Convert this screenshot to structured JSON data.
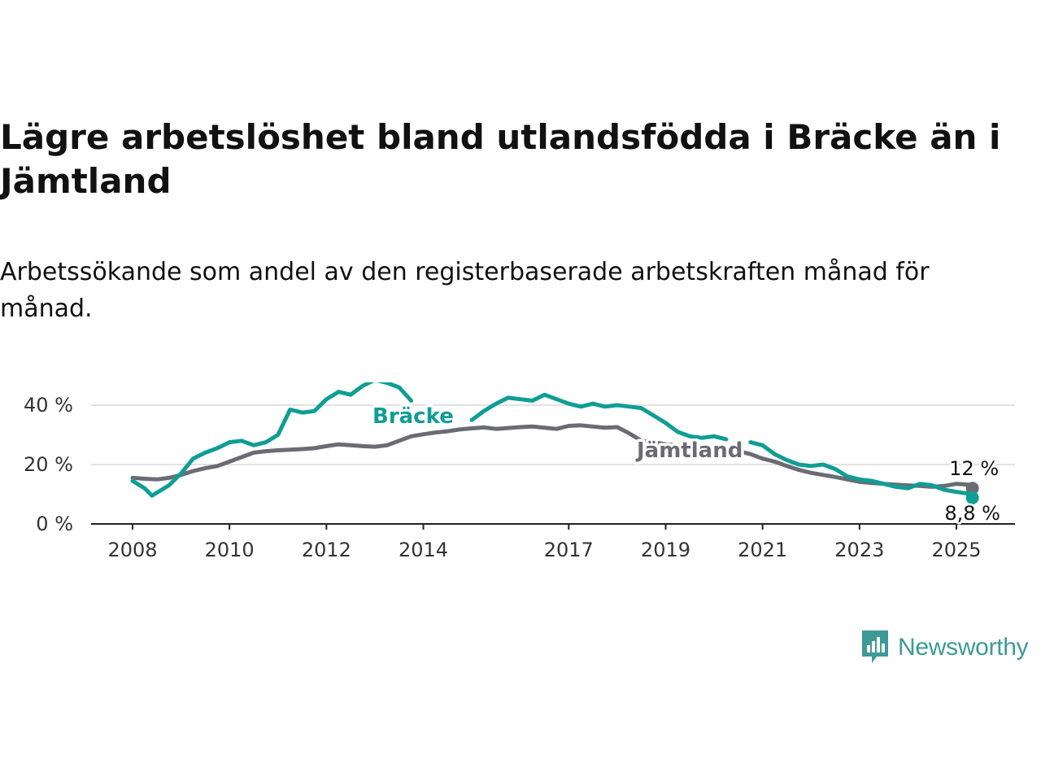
{
  "title": "Lägre arbetslöshet bland utlandsfödda i Bräcke än i Jämtland",
  "subtitle": "Arbetssökande som andel av den registerbaserade arbetskraften månad för månad.",
  "branding": {
    "name": "Newsworthy",
    "icon": "newsworthy-logo-icon",
    "color": "#3d9a95"
  },
  "chart_data": {
    "type": "line",
    "title": "Lägre arbetslöshet bland utlandsfödda i Bräcke än i Jämtland",
    "subtitle": "Arbetssökande som andel av den registerbaserade arbetskraften månad för månad.",
    "xlabel": "",
    "ylabel": "",
    "xlim": [
      2008,
      2025.5
    ],
    "ylim": [
      0,
      50
    ],
    "x_ticks": [
      2008,
      2010,
      2012,
      2014,
      2017,
      2019,
      2021,
      2023,
      2025
    ],
    "y_ticks": [
      0,
      20,
      40
    ],
    "y_tick_labels": [
      "0 %",
      "20 %",
      "40 %"
    ],
    "grid": "horizontal",
    "series": [
      {
        "name": "Jämtland",
        "color": "#6b6b73",
        "end_label": "12 %",
        "points": [
          [
            2008.0,
            15.5
          ],
          [
            2008.25,
            15.2
          ],
          [
            2008.5,
            15.0
          ],
          [
            2008.75,
            15.5
          ],
          [
            2009.0,
            16.5
          ],
          [
            2009.25,
            17.8
          ],
          [
            2009.5,
            18.8
          ],
          [
            2009.75,
            19.5
          ],
          [
            2010.0,
            21.0
          ],
          [
            2010.25,
            22.5
          ],
          [
            2010.5,
            24.0
          ],
          [
            2010.75,
            24.5
          ],
          [
            2011.0,
            24.8
          ],
          [
            2011.25,
            25.0
          ],
          [
            2011.5,
            25.2
          ],
          [
            2011.75,
            25.5
          ],
          [
            2012.0,
            26.2
          ],
          [
            2012.25,
            26.8
          ],
          [
            2012.5,
            26.5
          ],
          [
            2012.75,
            26.2
          ],
          [
            2013.0,
            26.0
          ],
          [
            2013.25,
            26.5
          ],
          [
            2013.5,
            28.0
          ],
          [
            2013.75,
            29.5
          ],
          [
            2014.0,
            30.2
          ],
          [
            2014.25,
            30.8
          ],
          [
            2014.5,
            31.2
          ],
          [
            2014.75,
            31.8
          ],
          [
            2015.0,
            32.2
          ],
          [
            2015.25,
            32.5
          ],
          [
            2015.5,
            32.0
          ],
          [
            2015.75,
            32.3
          ],
          [
            2016.0,
            32.6
          ],
          [
            2016.25,
            32.8
          ],
          [
            2016.5,
            32.4
          ],
          [
            2016.75,
            32.0
          ],
          [
            2017.0,
            33.0
          ],
          [
            2017.25,
            33.2
          ],
          [
            2017.5,
            32.8
          ],
          [
            2017.75,
            32.4
          ],
          [
            2018.0,
            32.6
          ],
          [
            2018.25,
            30.5
          ],
          [
            2018.5,
            28.0
          ],
          [
            2018.75,
            27.5
          ],
          [
            2019.0,
            26.8
          ],
          [
            2019.25,
            26.5
          ],
          [
            2019.5,
            26.2
          ],
          [
            2019.75,
            26.0
          ],
          [
            2020.0,
            25.8
          ],
          [
            2020.25,
            25.5
          ],
          [
            2020.5,
            24.5
          ],
          [
            2020.75,
            23.5
          ],
          [
            2021.0,
            22.0
          ],
          [
            2021.25,
            21.0
          ],
          [
            2021.5,
            19.5
          ],
          [
            2021.75,
            18.2
          ],
          [
            2022.0,
            17.2
          ],
          [
            2022.25,
            16.5
          ],
          [
            2022.5,
            15.8
          ],
          [
            2022.75,
            15.0
          ],
          [
            2023.0,
            14.2
          ],
          [
            2023.25,
            13.8
          ],
          [
            2023.5,
            13.5
          ],
          [
            2023.75,
            13.2
          ],
          [
            2024.0,
            13.0
          ],
          [
            2024.25,
            12.8
          ],
          [
            2024.5,
            12.5
          ],
          [
            2024.75,
            12.8
          ],
          [
            2025.0,
            13.5
          ],
          [
            2025.25,
            13.2
          ],
          [
            2025.33,
            12.0
          ]
        ]
      },
      {
        "name": "Bräcke",
        "color": "#0f9e95",
        "end_label": "8,8 %",
        "segments": [
          [
            [
              2008.0,
              14.5
            ],
            [
              2008.25,
              12.0
            ],
            [
              2008.4,
              9.5
            ],
            [
              2008.6,
              11.5
            ],
            [
              2008.75,
              13.0
            ],
            [
              2009.0,
              17.0
            ],
            [
              2009.25,
              22.0
            ],
            [
              2009.5,
              24.0
            ],
            [
              2009.75,
              25.5
            ],
            [
              2010.0,
              27.5
            ],
            [
              2010.25,
              28.0
            ],
            [
              2010.5,
              26.5
            ],
            [
              2010.75,
              27.5
            ],
            [
              2011.0,
              30.0
            ],
            [
              2011.25,
              38.5
            ],
            [
              2011.5,
              37.5
            ],
            [
              2011.75,
              38.0
            ],
            [
              2012.0,
              42.0
            ],
            [
              2012.25,
              44.5
            ],
            [
              2012.5,
              43.5
            ],
            [
              2012.75,
              46.5
            ],
            [
              2013.0,
              48.5
            ],
            [
              2013.25,
              47.5
            ],
            [
              2013.5,
              46.0
            ],
            [
              2013.75,
              41.5
            ]
          ],
          [
            [
              2015.0,
              35.0
            ],
            [
              2015.25,
              38.0
            ],
            [
              2015.5,
              40.5
            ],
            [
              2015.75,
              42.5
            ],
            [
              2016.0,
              42.0
            ],
            [
              2016.25,
              41.5
            ],
            [
              2016.5,
              43.5
            ],
            [
              2016.75,
              42.0
            ],
            [
              2017.0,
              40.5
            ],
            [
              2017.25,
              39.5
            ],
            [
              2017.5,
              40.5
            ],
            [
              2017.75,
              39.5
            ],
            [
              2018.0,
              40.0
            ],
            [
              2018.25,
              39.5
            ],
            [
              2018.5,
              39.0
            ],
            [
              2018.75,
              36.5
            ],
            [
              2019.0,
              34.0
            ],
            [
              2019.25,
              31.0
            ],
            [
              2019.5,
              29.5
            ],
            [
              2019.75,
              29.0
            ],
            [
              2020.0,
              29.5
            ],
            [
              2020.25,
              28.5
            ]
          ],
          [
            [
              2020.75,
              27.5
            ],
            [
              2021.0,
              26.5
            ],
            [
              2021.25,
              23.5
            ],
            [
              2021.5,
              21.5
            ],
            [
              2021.75,
              20.0
            ],
            [
              2022.0,
              19.5
            ],
            [
              2022.25,
              20.0
            ],
            [
              2022.5,
              18.5
            ],
            [
              2022.75,
              16.0
            ],
            [
              2023.0,
              15.0
            ],
            [
              2023.25,
              14.5
            ],
            [
              2023.5,
              13.5
            ],
            [
              2023.75,
              12.5
            ],
            [
              2024.0,
              12.0
            ],
            [
              2024.25,
              13.5
            ],
            [
              2024.5,
              13.0
            ],
            [
              2024.75,
              11.5
            ],
            [
              2025.0,
              10.8
            ],
            [
              2025.25,
              10.2
            ],
            [
              2025.33,
              8.8
            ]
          ]
        ]
      }
    ]
  }
}
